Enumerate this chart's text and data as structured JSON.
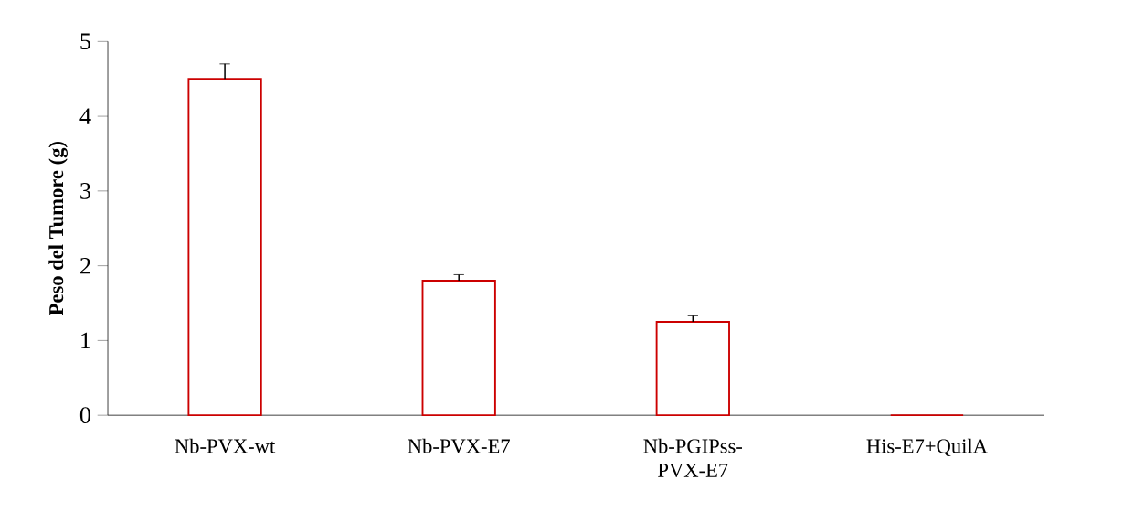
{
  "chart_data": {
    "type": "bar",
    "ylabel": "Peso del Tumore (g)",
    "categories": [
      "Nb-PVX-wt",
      "Nb-PVX-E7",
      "Nb-PGIPss-PVX-E7",
      "His-E7+QuilA"
    ],
    "values": [
      4.5,
      1.8,
      1.25,
      0
    ],
    "errors": [
      0.2,
      0.08,
      0.08,
      null
    ],
    "color": "#cc0000",
    "ylim": [
      0,
      5
    ],
    "yticks": [
      0,
      1,
      2,
      3,
      4,
      5
    ]
  }
}
